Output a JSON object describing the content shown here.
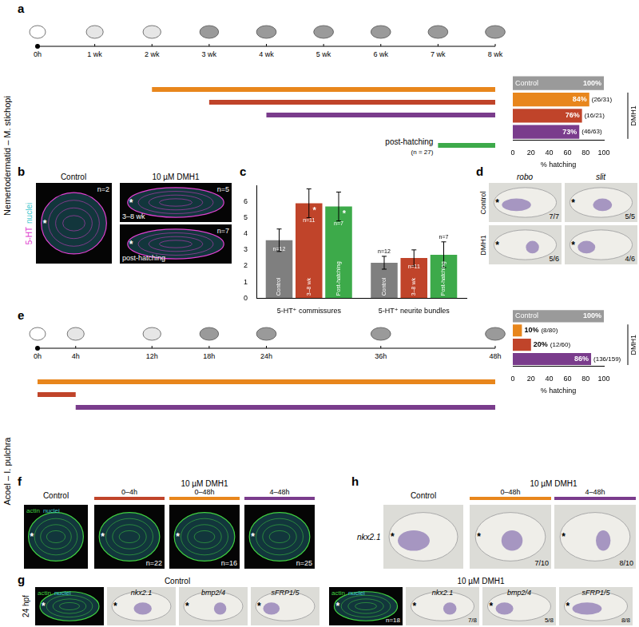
{
  "chart_data": [
    {
      "type": "bar",
      "orientation": "horizontal",
      "categories": [
        "Control",
        null,
        null,
        null
      ],
      "group_label": "DMH1",
      "values": [
        100,
        84,
        76,
        73
      ],
      "value_labels": [
        "100%",
        "84%",
        "76%",
        "73%"
      ],
      "counts": [
        null,
        "(26/31)",
        "(16/21)",
        "(46/63)"
      ],
      "colors": [
        "#9a9a9a",
        "#e8861c",
        "#c0442a",
        "#7a3c8c"
      ],
      "xlim": [
        0,
        100
      ],
      "xticks": [
        0,
        20,
        40,
        60,
        80,
        100
      ],
      "x_label": "% hatching",
      "tick_labels": "x",
      "grid": false
    },
    {
      "type": "bar",
      "categories": [
        "5-HT⁺ commissures",
        "5-HT⁺ neurite bundles"
      ],
      "series": [
        {
          "name": "Control",
          "color": "#7f7f7f",
          "values": [
            3.6,
            2.2
          ],
          "errors": [
            0.7,
            0.4
          ],
          "n_labels": [
            "n=12",
            "n=12"
          ]
        },
        {
          "name": "3–8 wk",
          "color": "#c0442a",
          "values": [
            5.9,
            2.5
          ],
          "errors": [
            0.9,
            0.5
          ],
          "n_labels": [
            "n=11",
            "n=11"
          ],
          "annotations": [
            "*",
            null
          ]
        },
        {
          "name": "Post-hatching",
          "color": "#3daa4a",
          "values": [
            5.7,
            2.7
          ],
          "errors": [
            0.9,
            0.8
          ],
          "n_labels": [
            "n=7",
            "n=7"
          ],
          "annotations": [
            "*",
            null
          ]
        }
      ],
      "ylim": [
        0,
        7
      ],
      "yticks": [
        0,
        1,
        2,
        3,
        4,
        5,
        6
      ],
      "grid": false,
      "legend": false
    },
    {
      "type": "bar",
      "orientation": "horizontal",
      "categories": [
        "Control",
        null,
        null,
        null
      ],
      "group_label": "DMH1",
      "values": [
        100,
        10,
        20,
        86
      ],
      "value_labels": [
        "100%",
        "10%",
        "20%",
        "86%"
      ],
      "counts": [
        null,
        "(8/80)",
        "(12/60)",
        "(136/159)"
      ],
      "colors": [
        "#9a9a9a",
        "#e8861c",
        "#c0442a",
        "#7a3c8c"
      ],
      "xlim": [
        0,
        100
      ],
      "xticks": [
        0,
        20,
        40,
        60,
        80,
        100
      ],
      "x_label": "% hatching",
      "tick_labels": "x",
      "grid": false
    }
  ],
  "figure": {
    "anterior_mark": "*",
    "a": {
      "letter": "a",
      "side_label": "Nemertodermatid – M. stichopi",
      "timeline": {
        "xlim": [
          0,
          8
        ],
        "ticks": [
          {
            "value": 0,
            "label": "0h"
          },
          {
            "value": 1,
            "label": "1 wk"
          },
          {
            "value": 2,
            "label": "2 wk"
          },
          {
            "value": 3,
            "label": "3 wk"
          },
          {
            "value": 4,
            "label": "4 wk"
          },
          {
            "value": 5,
            "label": "5 wk"
          },
          {
            "value": 6,
            "label": "6 wk"
          },
          {
            "value": 7,
            "label": "7 wk"
          },
          {
            "value": 8,
            "label": "8 wk"
          }
        ],
        "bars": [
          {
            "start": 2,
            "end": 8,
            "color": "#e8861c"
          },
          {
            "start": 3,
            "end": 8,
            "color": "#c0442a"
          },
          {
            "start": 4,
            "end": 8,
            "color": "#7a3c8c"
          },
          {
            "start": 7,
            "end": 8,
            "color": "#3daa4a",
            "label": "post-hatching",
            "count": "(n = 27)"
          }
        ]
      }
    },
    "b": {
      "letter": "b",
      "stain": [
        {
          "text": "5-HT",
          "color": "#e040d0"
        },
        {
          "text": "nuclei",
          "color": "#40c8d0"
        }
      ],
      "control": {
        "caption": "Control",
        "count": "n=2"
      },
      "treatment": "10 µM DMH1",
      "images": [
        {
          "caption": "3–8 wk",
          "count": "n=5"
        },
        {
          "caption": "post-hatching",
          "count": "n=7"
        }
      ]
    },
    "c": {
      "letter": "c"
    },
    "d": {
      "letter": "d",
      "genes": [
        "robo",
        "slit"
      ],
      "rows": [
        {
          "label": "Control",
          "counts": [
            "7/7",
            "5/5"
          ]
        },
        {
          "label": "DMH1",
          "counts": [
            "5/6",
            "4/6"
          ]
        }
      ]
    },
    "e": {
      "letter": "e",
      "side_label": "Acoel – I. pulchra",
      "timeline": {
        "xlim": [
          0,
          48
        ],
        "ticks": [
          {
            "value": 0,
            "label": "0h"
          },
          {
            "value": 4,
            "label": "4h"
          },
          {
            "value": 12,
            "label": "12h"
          },
          {
            "value": 18,
            "label": "18h"
          },
          {
            "value": 24,
            "label": "24h"
          },
          {
            "value": 36,
            "label": "36h"
          },
          {
            "value": 48,
            "label": "48h"
          }
        ],
        "bars": [
          {
            "start": 0,
            "end": 48,
            "color": "#e8861c"
          },
          {
            "start": 0,
            "end": 4,
            "color": "#c0442a"
          },
          {
            "start": 4,
            "end": 48,
            "color": "#7a3c8c"
          }
        ]
      }
    },
    "f": {
      "letter": "f",
      "stain": [
        {
          "text": "actin",
          "color": "#40d040"
        },
        {
          "text": "nuclei",
          "color": "#40c8d0"
        }
      ],
      "control": {
        "caption": "Control"
      },
      "treatment": "10 µM DMH1",
      "images": [
        {
          "caption": "0–4h",
          "count": "n=22",
          "color": "#c0442a"
        },
        {
          "caption": "0–48h",
          "count": "n=16",
          "color": "#e8861c"
        },
        {
          "caption": "4–48h",
          "count": "n=25",
          "color": "#7a3c8c"
        }
      ]
    },
    "g": {
      "letter": "g",
      "stage": "24 hpf",
      "stain": [
        {
          "text": "actin",
          "color": "#40d040"
        },
        {
          "text": "nuclei",
          "color": "#40c8d0"
        }
      ],
      "groups": [
        {
          "caption": "Control",
          "images": [
            {
              "kind": "fluorescence"
            },
            {
              "kind": "ish",
              "gene": "nkx2.1"
            },
            {
              "kind": "ish",
              "gene": "bmp2/4"
            },
            {
              "kind": "ish",
              "gene": "sFRP1/5"
            }
          ]
        },
        {
          "caption": "10 µM DMH1",
          "images": [
            {
              "kind": "fluorescence",
              "count": "n=18"
            },
            {
              "kind": "ish",
              "gene": "nkx2.1",
              "count": "7/8"
            },
            {
              "kind": "ish",
              "gene": "bmp2/4",
              "count": "5/8"
            },
            {
              "kind": "ish",
              "gene": "sFRP1/5",
              "count": "8/8"
            }
          ]
        }
      ]
    },
    "h": {
      "letter": "h",
      "gene": "nkx2.1",
      "control": {
        "caption": "Control"
      },
      "treatment": "10 µM DMH1",
      "images": [
        {
          "caption": "0–48h",
          "count": "7/10",
          "color": "#e8861c"
        },
        {
          "caption": "4–48h",
          "count": "8/10",
          "color": "#7a3c8c"
        }
      ]
    }
  }
}
